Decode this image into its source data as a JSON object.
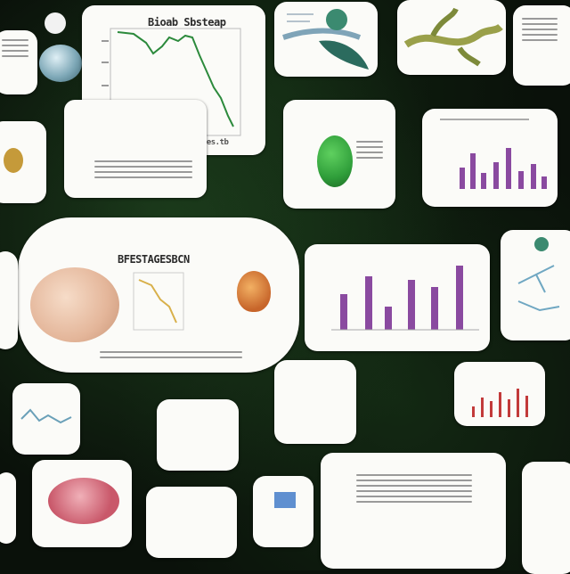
{
  "main_graph": {
    "title": "Bioab Sbsteap",
    "caption": "Grabbt Ravisbttes.tb"
  },
  "center_card": {
    "title": "BFESTAGESBCN"
  },
  "colors": {
    "background": "#0a110a",
    "card": "#fbfbf8",
    "bar_purple": "#8a4aa0",
    "bar_red": "#c23a3a",
    "leaf_green": "#2f9e3a",
    "line_green": "#2c8a3c"
  },
  "icons": [
    "leaf-cluster-icon",
    "seed-icon",
    "onion-bulb-icon",
    "gem-icon",
    "shell-icon"
  ]
}
